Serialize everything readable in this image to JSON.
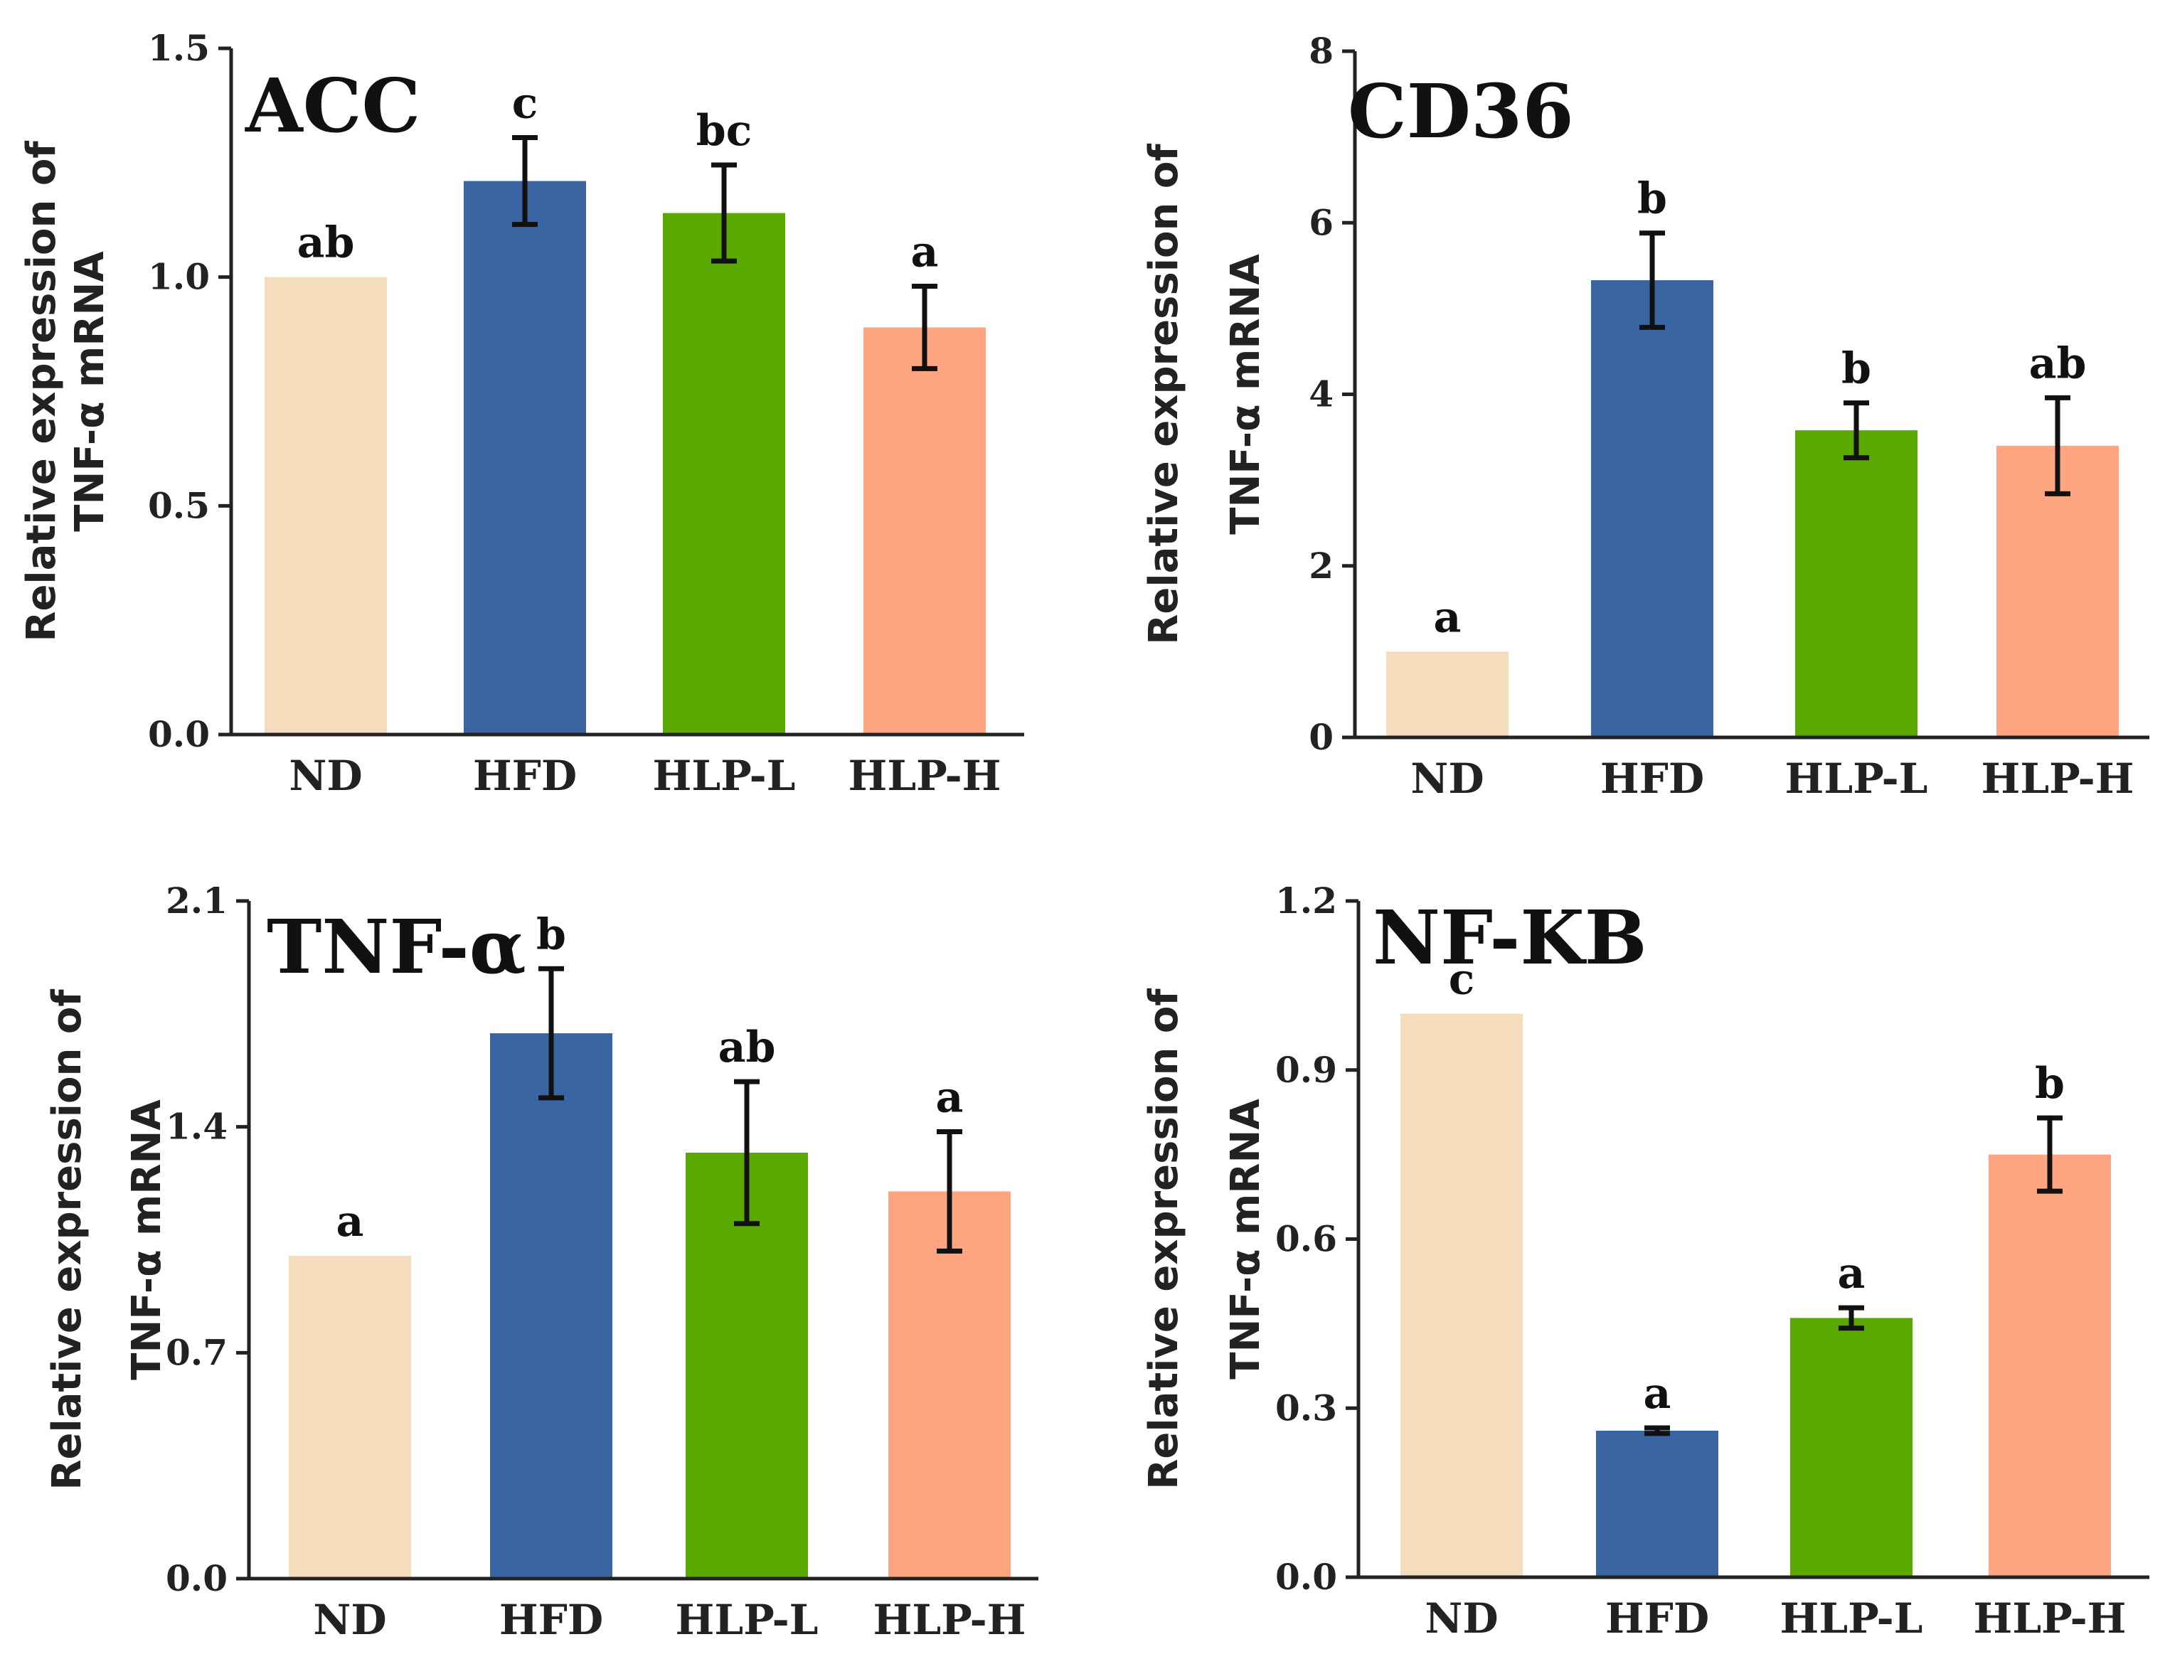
{
  "categories": [
    "ND",
    "HFD",
    "HLP-L",
    "HLP-H"
  ],
  "colors": {
    "ND": "#f5dcbc",
    "HFD": "#3966a2",
    "HLP-L": "#5aa800",
    "HLP-H": "#ffa581"
  },
  "chart_data": [
    {
      "type": "bar",
      "title": "ACC",
      "ylabel_line1": "Relative expression of",
      "ylabel_line2": "TNF-α mRNA",
      "categories": [
        "ND",
        "HFD",
        "HLP-L",
        "HLP-H"
      ],
      "values": [
        1.0,
        1.21,
        1.14,
        0.89
      ],
      "errors": [
        0.0,
        0.095,
        0.105,
        0.09
      ],
      "significance": [
        "ab",
        "c",
        "bc",
        "a"
      ],
      "ylim": [
        0,
        1.5
      ],
      "yticks": [
        "0.0",
        "0.5",
        "1.0",
        "1.5"
      ]
    },
    {
      "type": "bar",
      "title": "CD36",
      "ylabel_line1": "Relative expression of",
      "ylabel_line2": "TNF-α mRNA",
      "categories": [
        "ND",
        "HFD",
        "HLP-L",
        "HLP-H"
      ],
      "values": [
        1.0,
        5.33,
        3.58,
        3.4
      ],
      "errors": [
        0.0,
        0.55,
        0.32,
        0.56
      ],
      "significance": [
        "a",
        "b",
        "b",
        "ab"
      ],
      "ylim": [
        0,
        8
      ],
      "yticks": [
        "0",
        "2",
        "4",
        "6",
        "8"
      ]
    },
    {
      "type": "bar",
      "title": "TNF-α",
      "ylabel_line1": "Relative expression of",
      "ylabel_line2": "TNF-α mRNA",
      "categories": [
        "ND",
        "HFD",
        "HLP-L",
        "HLP-H"
      ],
      "values": [
        1.0,
        1.69,
        1.32,
        1.2
      ],
      "errors": [
        0.0,
        0.2,
        0.22,
        0.185
      ],
      "significance": [
        "a",
        "b",
        "ab",
        "a"
      ],
      "ylim": [
        0,
        2.1
      ],
      "yticks": [
        "0.0",
        "0.7",
        "1.4",
        "2.1"
      ]
    },
    {
      "type": "bar",
      "title": "NF-KB",
      "ylabel_line1": "Relative expression of",
      "ylabel_line2": "TNF-α mRNA",
      "categories": [
        "ND",
        "HFD",
        "HLP-L",
        "HLP-H"
      ],
      "values": [
        1.0,
        0.26,
        0.46,
        0.75
      ],
      "errors": [
        0.0,
        0.005,
        0.018,
        0.065
      ],
      "significance": [
        "c",
        "a",
        "a",
        "b"
      ],
      "ylim": [
        0,
        1.2
      ],
      "yticks": [
        "0.0",
        "0.3",
        "0.6",
        "0.9",
        "1.2"
      ]
    }
  ]
}
